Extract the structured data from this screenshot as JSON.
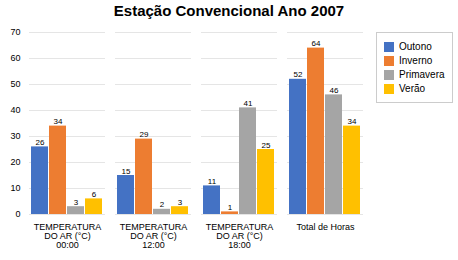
{
  "chart_data": {
    "type": "bar",
    "title": "Estação Convencional Ano 2007",
    "categories": [
      "TEMPERATURA\nDO AR (°C)\n00:00",
      "TEMPERATURA\nDO AR (°C)\n12:00",
      "TEMPERATURA\nDO AR (°C)\n18:00",
      "Total de Horas"
    ],
    "series": [
      {
        "name": "Outono",
        "color": "#4472C4",
        "values": [
          26,
          15,
          11,
          52
        ]
      },
      {
        "name": "Inverno",
        "color": "#ED7D31",
        "values": [
          34,
          29,
          1,
          64
        ]
      },
      {
        "name": "Primavera",
        "color": "#A5A5A5",
        "values": [
          3,
          2,
          41,
          46
        ]
      },
      {
        "name": "Verão",
        "color": "#FFC000",
        "values": [
          6,
          3,
          25,
          34
        ]
      }
    ],
    "ylim": [
      0,
      70
    ],
    "yticks": [
      0,
      10,
      20,
      30,
      40,
      50,
      60,
      70
    ],
    "grid": true,
    "legend": "right",
    "data_labels": true
  }
}
